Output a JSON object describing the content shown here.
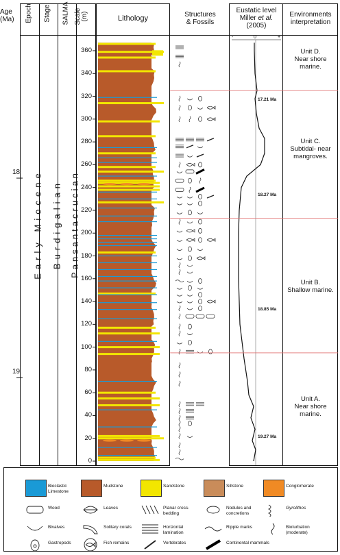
{
  "headers": {
    "age": "Age\n(Ma)",
    "epoch": "Epoch",
    "stage": "Stage",
    "salma": "SALMA",
    "scale": "Scale\n(m)",
    "lithology": "Lithology",
    "structures": "Structures\n& Fossils",
    "eustatic_line1": "Eustatic level",
    "eustatic_line2a": "Miller ",
    "eustatic_italic": "et al.",
    "eustatic_line3": "(2005)",
    "environments": "Environments\ninterpretation"
  },
  "age_ticks": [
    {
      "label": "18",
      "y": 252
    },
    {
      "label": "19",
      "y": 543
    }
  ],
  "epoch_label": "Early Miocene",
  "stage_label": "Burdigalian",
  "salma_label": "Pansantacrucian",
  "scale_ticks": [
    "0",
    "20",
    "40",
    "60",
    "80",
    "100",
    "120",
    "140",
    "160",
    "180",
    "200",
    "220",
    "240",
    "260",
    "280",
    "300",
    "320",
    "340",
    "360"
  ],
  "eustatic_axis": {
    "minus": "-",
    "zero": "0",
    "plus": "+"
  },
  "ages_ma": [
    {
      "label": "17.21 Ma",
      "m": 317
    },
    {
      "label": "18.27 Ma",
      "m": 233
    },
    {
      "label": "18.85 Ma",
      "m": 133
    },
    {
      "label": "19.27 Ma",
      "m": 21
    }
  ],
  "environments": [
    {
      "text": "Unit D.\nNear shore\nmarine.",
      "m": 353
    },
    {
      "text": "Unit C.\nSubtidal- near\nmangroves.",
      "m": 274
    },
    {
      "text": "Unit B.\nShallow marine.",
      "m": 150
    },
    {
      "text": "Unit A.\nNear shore\nmarine.",
      "m": 48
    }
  ],
  "unit_boundaries_m": [
    95,
    213,
    325
  ],
  "colors": {
    "mudstone": "#b85a2a",
    "sandstone": "#f2e600",
    "siltstone": "#c98c5a",
    "limestone": "#1a9ad6",
    "conglomerate": "#f08a24",
    "boundary": "#e07070"
  },
  "legend": [
    {
      "label": "Bioclastic\nLimestone",
      "kind": "box",
      "color": "#1a9ad6"
    },
    {
      "label": "Mudstone",
      "kind": "box",
      "color": "#b85a2a"
    },
    {
      "label": "Sandstone",
      "kind": "box",
      "color": "#f2e600"
    },
    {
      "label": "Siltstone",
      "kind": "box",
      "color": "#c98c5a"
    },
    {
      "label": "Conglomerate",
      "kind": "box",
      "color": "#f08a24"
    },
    {
      "label": "Wood",
      "kind": "wood-icon"
    },
    {
      "label": "Leaves",
      "kind": "leaf-icon"
    },
    {
      "label": "Planar cross-\nbedding",
      "kind": "cross-bedding-icon"
    },
    {
      "label": "Nodules and\nconcretions",
      "kind": "nodule-icon"
    },
    {
      "label": "Gyrolithos",
      "kind": "gyrolithos-icon"
    },
    {
      "label": "Bivalves",
      "kind": "bivalve-icon"
    },
    {
      "label": "Solitary corals",
      "kind": "coral-icon"
    },
    {
      "label": "Horizontal\nlamination",
      "kind": "lamination-icon"
    },
    {
      "label": "Ripple marks",
      "kind": "ripple-icon"
    },
    {
      "label": "Bioturbation\n(moderate)",
      "kind": "bioturbation-icon"
    },
    {
      "label": "Gastropods",
      "kind": "gastropod-icon"
    },
    {
      "label": "Fish remains",
      "kind": "fish-icon"
    },
    {
      "label": "Vertebrates",
      "kind": "bone-icon"
    },
    {
      "label": "Continental mammals",
      "kind": "mammal-bone-icon"
    }
  ]
}
